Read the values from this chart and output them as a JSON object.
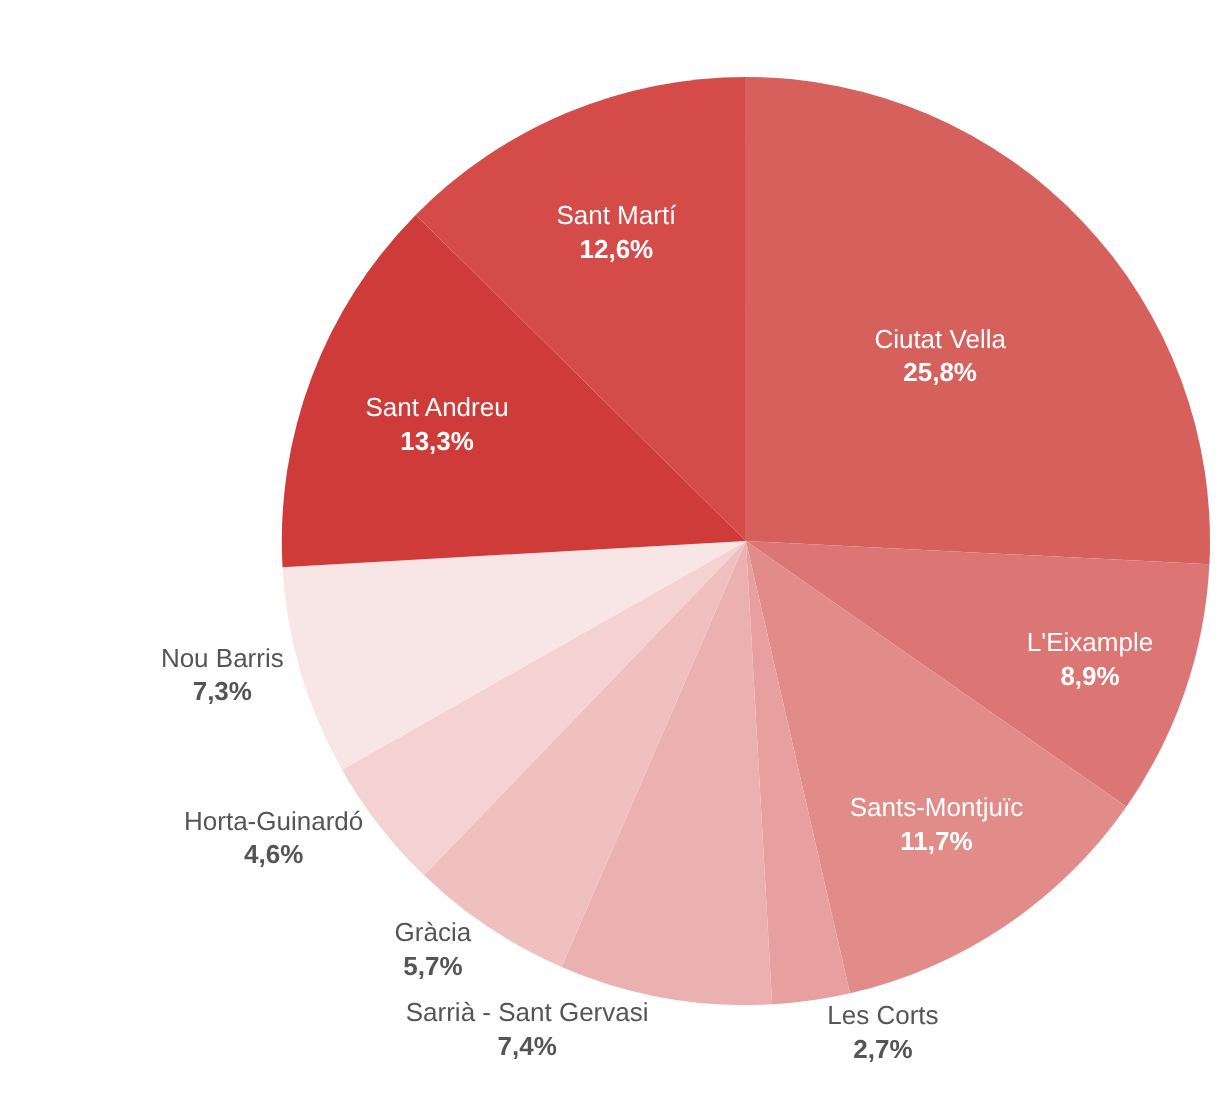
{
  "chart_data": {
    "type": "pie",
    "categories": [
      "Ciutat Vella",
      "L'Eixample",
      "Sants-Montjuïc",
      "Les Corts",
      "Sarrià - Sant Gervasi",
      "Gràcia",
      "Horta-Guinardó",
      "Nou Barris",
      "Sant Andreu",
      "Sant Martí"
    ],
    "values": [
      25.8,
      8.9,
      11.7,
      2.7,
      7.4,
      5.7,
      4.6,
      7.3,
      13.3,
      12.6
    ],
    "value_labels": [
      "25,8%",
      "8,9%",
      "11,7%",
      "2,7%",
      "7,4%",
      "5,7%",
      "4,6%",
      "7,3%",
      "13,3%",
      "12,6%"
    ],
    "colors": [
      "#d6605c",
      "#dc7674",
      "#e28c8a",
      "#e7a09f",
      "#ebb1b0",
      "#efc0bf",
      "#f3d2d1",
      "#f8e6e6",
      "#cf3b39",
      "#d54b48"
    ],
    "legend": false
  }
}
